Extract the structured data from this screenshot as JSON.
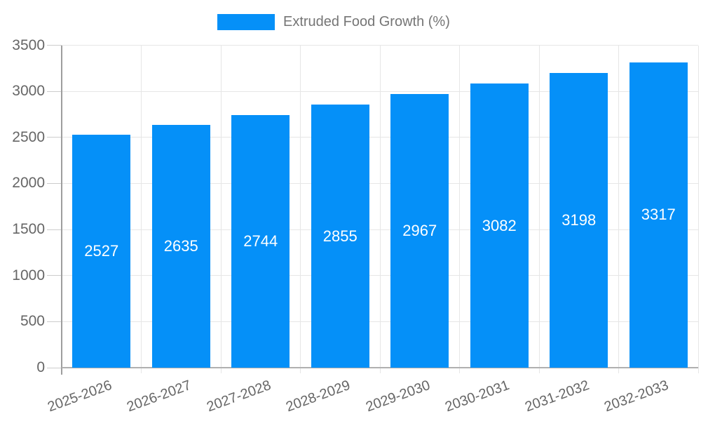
{
  "chart_data": {
    "type": "bar",
    "title": "",
    "xlabel": "",
    "ylabel": "",
    "legend": {
      "label": "Extruded Food Growth (%)",
      "position": "top"
    },
    "categories": [
      "2025-2026",
      "2026-2027",
      "2027-2028",
      "2028-2029",
      "2029-2030",
      "2030-2031",
      "2031-2032",
      "2032-2033"
    ],
    "values": [
      2527,
      2635,
      2744,
      2855,
      2967,
      3082,
      3198,
      3317
    ],
    "bar_labels": [
      "2527",
      "2635",
      "2744",
      "2855",
      "2967",
      "3082",
      "3198",
      "3317"
    ],
    "ylim": [
      0,
      3500
    ],
    "ytick_step": 500,
    "ytick_labels": [
      "0",
      "500",
      "1000",
      "1500",
      "2000",
      "2500",
      "3000",
      "3500"
    ],
    "grid": true,
    "colors": {
      "bar": "#0590f8",
      "bar_label": "#ffffff",
      "axis_text": "#666666",
      "legend_text": "#757575",
      "gridline": "#e6e6e6",
      "tick": "#cccccc",
      "axis_line": "#9e9e9e",
      "baseline": "#b0b0b0",
      "background": "#ffffff"
    }
  }
}
